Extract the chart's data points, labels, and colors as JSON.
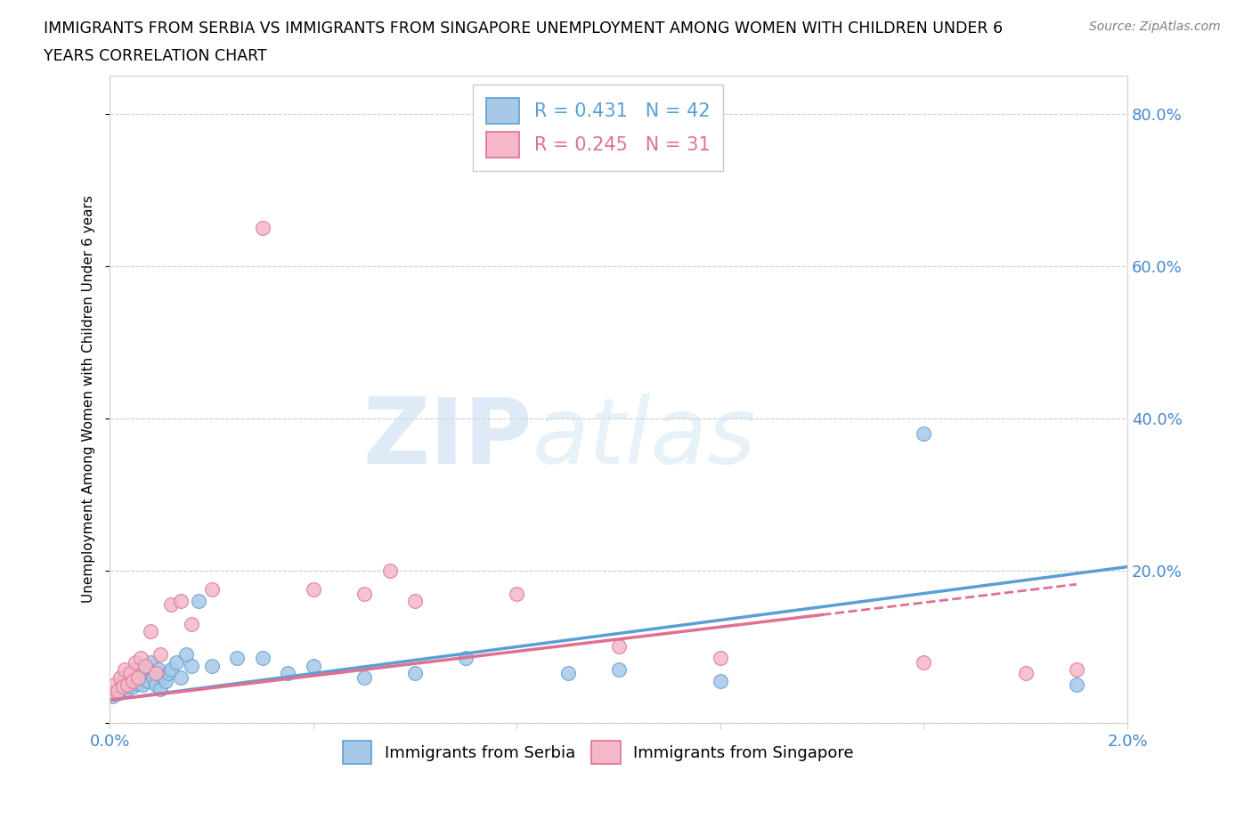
{
  "title_line1": "IMMIGRANTS FROM SERBIA VS IMMIGRANTS FROM SINGAPORE UNEMPLOYMENT AMONG WOMEN WITH CHILDREN UNDER 6",
  "title_line2": "YEARS CORRELATION CHART",
  "source": "Source: ZipAtlas.com",
  "ylabel": "Unemployment Among Women with Children Under 6 years",
  "xlim": [
    0.0,
    0.02
  ],
  "ylim": [
    0.0,
    0.85
  ],
  "serbia_R": 0.431,
  "serbia_N": 42,
  "singapore_R": 0.245,
  "singapore_N": 31,
  "serbia_color": "#a8c8e8",
  "serbia_edge_color": "#5a9fd4",
  "singapore_color": "#f4b8c8",
  "singapore_edge_color": "#e07090",
  "serbia_x": [
    5e-05,
    0.0001,
    0.00015,
    0.0002,
    0.00025,
    0.0003,
    0.00035,
    0.0004,
    0.00045,
    0.0005,
    0.00055,
    0.0006,
    0.00065,
    0.0007,
    0.00075,
    0.0008,
    0.00085,
    0.0009,
    0.00095,
    0.001,
    0.00105,
    0.0011,
    0.00115,
    0.0012,
    0.0013,
    0.0014,
    0.0015,
    0.0016,
    0.00175,
    0.002,
    0.0025,
    0.003,
    0.0035,
    0.004,
    0.005,
    0.006,
    0.007,
    0.009,
    0.01,
    0.012,
    0.016,
    0.019
  ],
  "serbia_y": [
    0.035,
    0.04,
    0.038,
    0.05,
    0.042,
    0.06,
    0.045,
    0.055,
    0.048,
    0.07,
    0.052,
    0.065,
    0.05,
    0.075,
    0.055,
    0.08,
    0.06,
    0.05,
    0.07,
    0.045,
    0.06,
    0.055,
    0.065,
    0.07,
    0.08,
    0.06,
    0.09,
    0.075,
    0.16,
    0.075,
    0.085,
    0.085,
    0.065,
    0.075,
    0.06,
    0.065,
    0.085,
    0.065,
    0.07,
    0.055,
    0.38,
    0.05
  ],
  "singapore_x": [
    5e-05,
    0.0001,
    0.00015,
    0.0002,
    0.00025,
    0.0003,
    0.00035,
    0.0004,
    0.00045,
    0.0005,
    0.00055,
    0.0006,
    0.0007,
    0.0008,
    0.0009,
    0.001,
    0.0012,
    0.0014,
    0.0016,
    0.002,
    0.003,
    0.004,
    0.005,
    0.0055,
    0.006,
    0.008,
    0.01,
    0.012,
    0.016,
    0.018,
    0.019
  ],
  "singapore_y": [
    0.04,
    0.05,
    0.042,
    0.06,
    0.048,
    0.07,
    0.05,
    0.065,
    0.055,
    0.08,
    0.06,
    0.085,
    0.075,
    0.12,
    0.065,
    0.09,
    0.155,
    0.16,
    0.13,
    0.175,
    0.65,
    0.175,
    0.17,
    0.2,
    0.16,
    0.17,
    0.1,
    0.085,
    0.08,
    0.065,
    0.07
  ],
  "serbia_trend": [
    0.03,
    0.205
  ],
  "singapore_trend_solid": [
    0.03,
    0.19
  ],
  "singapore_trend_x_break": 0.014,
  "watermark_zip": "ZIP",
  "watermark_atlas": "atlas"
}
